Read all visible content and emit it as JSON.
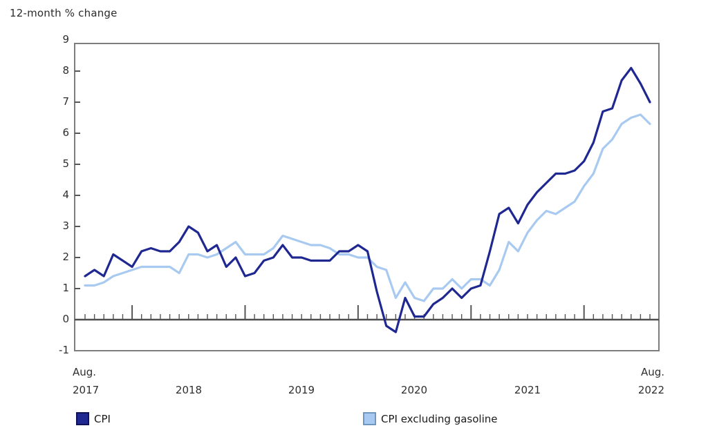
{
  "chart_data": {
    "type": "line",
    "title": "12-month % change",
    "frequency": "monthly",
    "x_start_label": [
      "Aug.",
      "2017"
    ],
    "x_year_labels": [
      "2018",
      "2019",
      "2020",
      "2021"
    ],
    "x_end_label": [
      "Aug.",
      "2022"
    ],
    "y_tick_labels": [
      "9",
      "8",
      "7",
      "6",
      "5",
      "4",
      "3",
      "2",
      "1",
      "0",
      "-1"
    ],
    "ylim": [
      -1,
      9
    ],
    "grid": false,
    "legend_position": "bottom",
    "series": [
      {
        "name": "CPI",
        "color": "#1f2791",
        "swatch_border": "#0f1353",
        "values": [
          1.4,
          1.6,
          1.4,
          2.1,
          1.9,
          1.7,
          2.2,
          2.3,
          2.2,
          2.2,
          2.5,
          3.0,
          2.8,
          2.2,
          2.4,
          1.7,
          2.0,
          1.4,
          1.5,
          1.9,
          2.0,
          2.4,
          2.0,
          2.0,
          1.9,
          1.9,
          1.9,
          2.2,
          2.2,
          2.4,
          2.2,
          0.9,
          -0.2,
          -0.4,
          0.7,
          0.1,
          0.1,
          0.5,
          0.7,
          1.0,
          0.7,
          1.0,
          1.1,
          2.2,
          3.4,
          3.6,
          3.1,
          3.7,
          4.1,
          4.4,
          4.7,
          4.7,
          4.8,
          5.1,
          5.7,
          6.7,
          6.8,
          7.7,
          8.1,
          7.6,
          7.0
        ]
      },
      {
        "name": "CPI excluding gasoline",
        "color": "#a8caf0",
        "swatch_border": "#7096bd",
        "values": [
          1.1,
          1.1,
          1.2,
          1.4,
          1.5,
          1.6,
          1.7,
          1.7,
          1.7,
          1.7,
          1.5,
          2.1,
          2.1,
          2.0,
          2.1,
          2.3,
          2.5,
          2.1,
          2.1,
          2.1,
          2.3,
          2.7,
          2.6,
          2.5,
          2.4,
          2.4,
          2.3,
          2.1,
          2.1,
          2.0,
          2.0,
          1.7,
          1.6,
          0.7,
          1.2,
          0.7,
          0.6,
          1.0,
          1.0,
          1.3,
          1.0,
          1.3,
          1.3,
          1.1,
          1.6,
          2.5,
          2.2,
          2.8,
          3.2,
          3.5,
          3.4,
          3.6,
          3.8,
          4.3,
          4.7,
          5.5,
          5.8,
          6.3,
          6.5,
          6.6,
          6.3
        ]
      }
    ]
  },
  "colors": {
    "background": "#ffffff",
    "frame": "#7d7d7d",
    "zero_axis": "#4d4d4d",
    "tick": "#555555",
    "text": "#2b2b2b"
  }
}
